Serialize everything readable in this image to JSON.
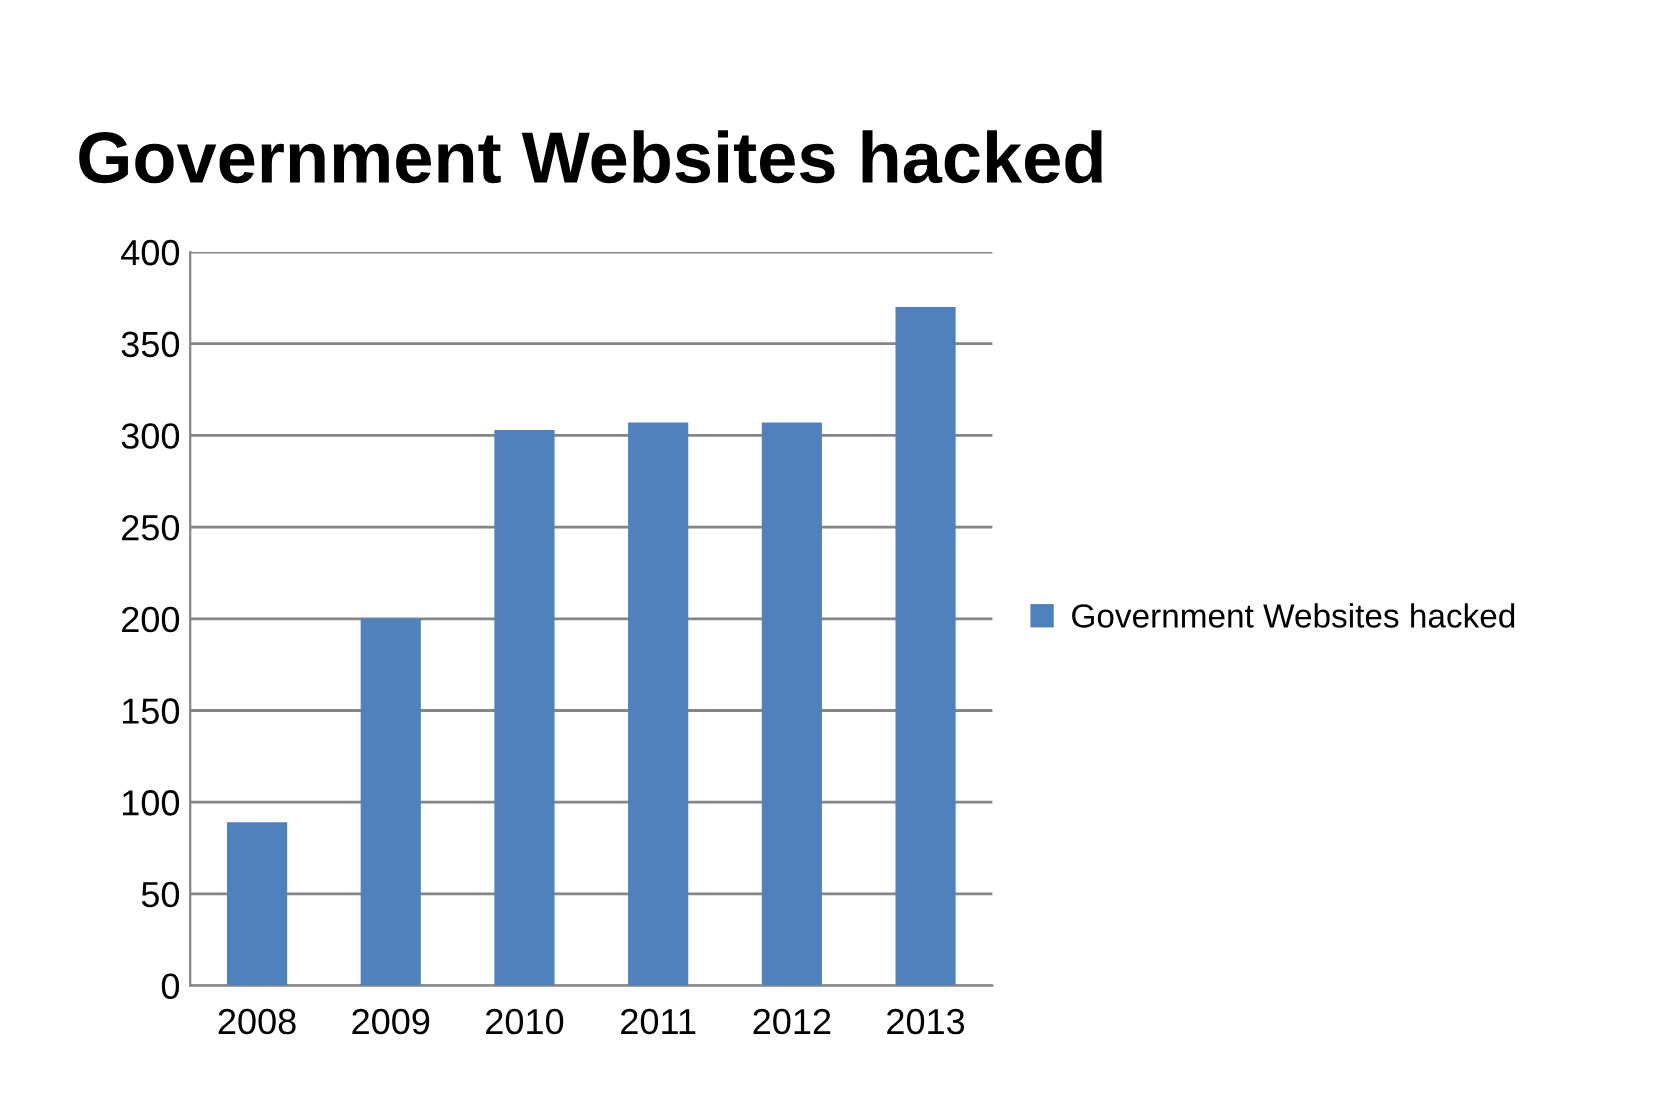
{
  "chart_data": {
    "type": "bar",
    "title": "Government Websites hacked",
    "categories": [
      "2008",
      "2009",
      "2010",
      "2011",
      "2012",
      "2013"
    ],
    "series": [
      {
        "name": "Government Websites hacked",
        "color": "#4f81bd",
        "values": [
          89,
          200,
          303,
          307,
          307,
          370
        ]
      }
    ],
    "ylim": [
      0,
      400
    ],
    "yticks": [
      0,
      50,
      100,
      150,
      200,
      250,
      300,
      350,
      400
    ],
    "grid": "y",
    "legend": "right"
  }
}
